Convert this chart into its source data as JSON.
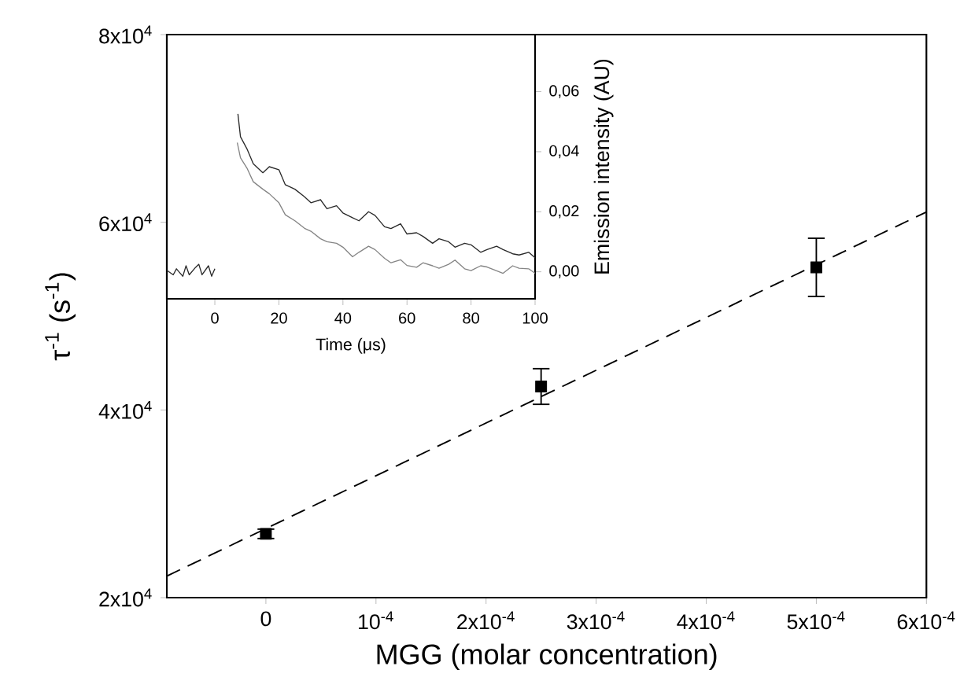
{
  "chart_data": [
    {
      "type": "scatter",
      "xlabel": "MGG (molar concentration)",
      "ylabel": "τ$^{-1}$ (s$^{-1}$)",
      "xlim": [
        -9e-05,
        0.0006
      ],
      "ylim": [
        20000,
        80000
      ],
      "xticks": [
        0,
        {
          "value": 0.0001,
          "label": "10$^{-4}$"
        },
        {
          "value": 0.0002,
          "label": "2x10$^{-4}$"
        },
        {
          "value": 0.0003,
          "label": "3x10$^{-4}$"
        },
        {
          "value": 0.0004,
          "label": "4x10$^{-4}$"
        },
        {
          "value": 0.0005,
          "label": "5x10$^{-4}$"
        },
        {
          "value": 0.0006,
          "label": "6x10$^{-4}$"
        }
      ],
      "yticks": [
        {
          "value": 20000,
          "label": "2x10$^{4}$"
        },
        {
          "value": 40000,
          "label": "4x10$^{4}$"
        },
        {
          "value": 60000,
          "label": "6x10$^{4}$"
        },
        {
          "value": 80000,
          "label": "8x10$^{4}$"
        }
      ],
      "marker": "square",
      "series": [
        {
          "type": "scatter",
          "color": "#000000",
          "x": [
            0,
            0.00025,
            0.0005
          ],
          "values": [
            26800,
            42500,
            55200
          ],
          "errors": [
            500,
            1900,
            3100
          ]
        },
        {
          "type": "line",
          "line_style": "dashed",
          "marker": "none",
          "color": "#000000",
          "x": [
            -9e-05,
            0.0006
          ],
          "values": [
            22300,
            61100
          ]
        }
      ]
    },
    {
      "type": "line",
      "xlabel": "Time (μs)",
      "ylabel": "Emission intensity (AU)",
      "xlim": [
        -15,
        100
      ],
      "ylim": [
        -0.009,
        0.079
      ],
      "xticks": [
        0,
        20,
        40,
        60,
        80,
        100
      ],
      "yticks": [
        {
          "value": 0,
          "label": "0,00"
        },
        {
          "value": 0.02,
          "label": "0,02"
        },
        {
          "value": 0.04,
          "label": "0,04"
        },
        {
          "value": 0.06,
          "label": "0,06"
        }
      ],
      "series": [
        {
          "color": "#2a2a2a",
          "x": [
            -15,
            -13,
            -12,
            -10,
            -9,
            -8,
            -6,
            -5,
            -4,
            -2,
            -1,
            0,
            3,
            7.2,
            8,
            10,
            12,
            15,
            17,
            20,
            22,
            25,
            28,
            30,
            33,
            35,
            38,
            40,
            43,
            45,
            48,
            50,
            53,
            55,
            58,
            60,
            63,
            65,
            68,
            70,
            73,
            75,
            78,
            80,
            83,
            85,
            88,
            90,
            93,
            95,
            98,
            100
          ],
          "values": [
            0.0005,
            -0.001,
            0.001,
            -0.0015,
            0.002,
            -0.001,
            0.0015,
            0.0025,
            -0.001,
            0.002,
            -0.0015,
            0.001,
            null,
            0.0526,
            0.045,
            0.041,
            0.036,
            0.033,
            0.035,
            0.034,
            0.029,
            0.0275,
            0.025,
            0.023,
            0.024,
            0.021,
            0.022,
            0.0196,
            0.018,
            0.017,
            0.02,
            0.0188,
            0.015,
            0.0144,
            0.016,
            0.0126,
            0.013,
            0.0118,
            0.0095,
            0.011,
            0.01,
            0.0082,
            0.0095,
            0.009,
            0.0065,
            0.0074,
            0.0085,
            0.0074,
            0.006,
            0.0056,
            0.0065,
            0.0047
          ]
        },
        {
          "color": "#858585",
          "x": [
            7,
            8,
            10,
            12,
            15,
            17,
            20,
            22,
            25,
            28,
            30,
            33,
            35,
            38,
            40,
            43,
            45,
            48,
            50,
            53,
            55,
            58,
            60,
            63,
            65,
            68,
            70,
            73,
            75,
            78,
            80,
            83,
            85,
            88,
            90,
            93,
            95,
            98,
            100
          ],
          "values": [
            0.043,
            0.038,
            0.0346,
            0.03,
            0.0275,
            0.026,
            0.023,
            0.019,
            0.017,
            0.0145,
            0.0135,
            0.011,
            0.01,
            0.0095,
            0.0082,
            0.005,
            0.0065,
            0.0085,
            0.0074,
            0.0045,
            0.003,
            0.004,
            0.0021,
            0.0015,
            0.003,
            0.002,
            0.0012,
            0.0025,
            0.0039,
            0.001,
            0.0004,
            0.002,
            0.0016,
            0.0003,
            -0.0005,
            0.002,
            0.0012,
            0.001,
            -0.0005
          ]
        }
      ]
    }
  ]
}
